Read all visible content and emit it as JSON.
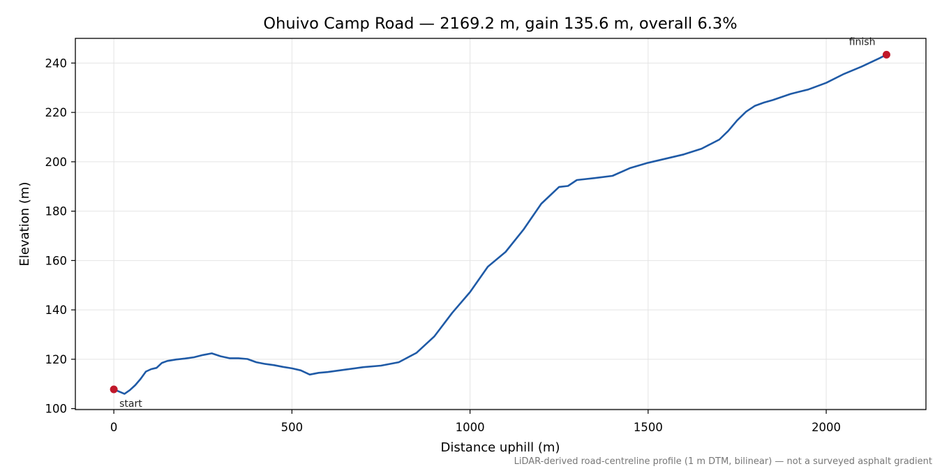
{
  "chart_data": {
    "type": "line",
    "title": "Ohuivo Camp Road — 2169.2 m, gain 135.6 m, overall 6.3%",
    "xlabel": "Distance uphill (m)",
    "ylabel": "Elevation (m)",
    "xlim": [
      -108,
      2280
    ],
    "ylim": [
      99.6,
      250
    ],
    "xticks": [
      0,
      500,
      1000,
      1500,
      2000
    ],
    "yticks": [
      100,
      120,
      140,
      160,
      180,
      200,
      220,
      240
    ],
    "grid": true,
    "footnote": "LiDAR-derived road-centreline profile (1 m DTM, bilinear) — not a surveyed asphalt gradient",
    "colors": {
      "line": "#1f5aa6",
      "marker": "#c0182a",
      "grid": "#e4e4e4"
    },
    "series": [
      {
        "x": [
          0,
          15,
          30,
          45,
          60,
          75,
          90,
          105,
          120,
          135,
          150,
          175,
          200,
          225,
          250,
          275,
          300,
          325,
          350,
          375,
          400,
          425,
          450,
          475,
          500,
          525,
          550,
          575,
          600,
          650,
          700,
          750,
          800,
          850,
          900,
          950,
          1000,
          1050,
          1100,
          1150,
          1200,
          1250,
          1275,
          1300,
          1350,
          1400,
          1450,
          1500,
          1550,
          1600,
          1650,
          1700,
          1725,
          1750,
          1775,
          1800,
          1825,
          1850,
          1900,
          1950,
          2000,
          2050,
          2100,
          2150,
          2169.2
        ],
        "y": [
          107.8,
          106.9,
          106.0,
          107.5,
          109.5,
          112.0,
          115.0,
          116.0,
          116.5,
          118.5,
          119.3,
          119.9,
          120.3,
          120.8,
          121.7,
          122.4,
          121.2,
          120.4,
          120.4,
          120.1,
          118.8,
          118.1,
          117.6,
          116.9,
          116.3,
          115.5,
          113.8,
          114.5,
          114.8,
          115.8,
          116.8,
          117.4,
          118.8,
          122.6,
          129.3,
          138.8,
          147.2,
          157.5,
          163.5,
          172.5,
          183.0,
          189.8,
          190.2,
          192.6,
          193.4,
          194.3,
          197.5,
          199.6,
          201.3,
          203.0,
          205.3,
          209.0,
          212.5,
          216.8,
          220.3,
          222.7,
          224.0,
          225.0,
          227.5,
          229.3,
          232.0,
          235.6,
          238.6,
          242.0,
          243.4
        ]
      }
    ],
    "annotations": [
      {
        "text": "start",
        "x": 0,
        "y": 107.8
      },
      {
        "text": "finish",
        "x": 2169.2,
        "y": 243.4
      }
    ]
  }
}
